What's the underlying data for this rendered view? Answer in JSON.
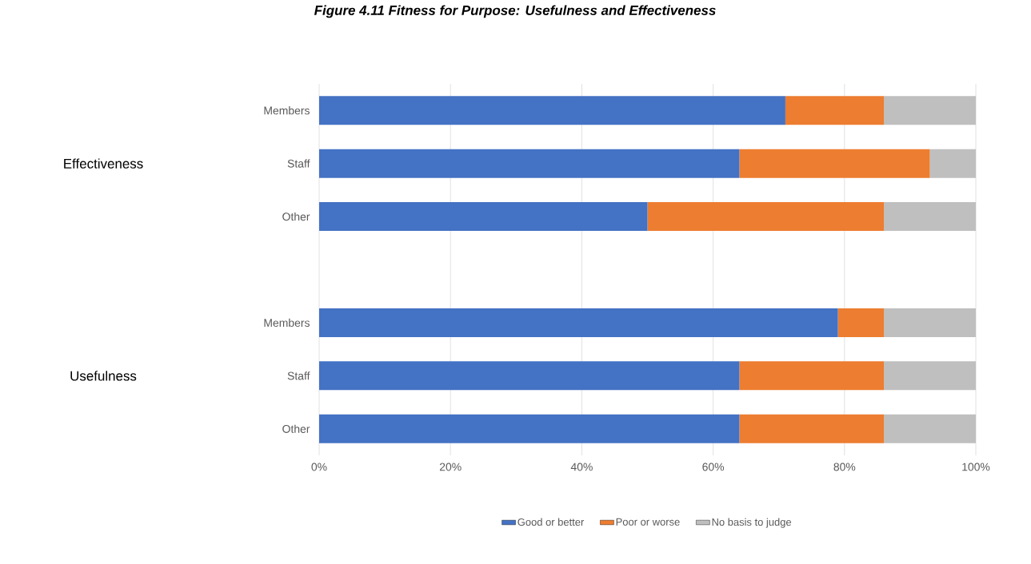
{
  "chart_data": {
    "type": "bar",
    "orientation": "horizontal",
    "stacked": true,
    "title": "Figure 4.11 Fitness for Purpose: Usefulness and Effectiveness",
    "categories": [
      "Members",
      "Staff",
      "Other",
      null,
      "Members",
      "Staff",
      "Other"
    ],
    "series": [
      {
        "name": "Good or better",
        "color": "#4472c4",
        "values": [
          71,
          64,
          50,
          null,
          79,
          64,
          64
        ]
      },
      {
        "name": "Poor or worse",
        "color": "#ed7d31",
        "values": [
          15,
          29,
          36,
          null,
          7,
          22,
          22
        ]
      },
      {
        "name": "No basis to judge",
        "color": "#bfbfbf",
        "values": [
          14,
          7,
          14,
          null,
          14,
          14,
          14
        ]
      }
    ],
    "xlim": [
      0,
      100
    ],
    "xticks": [
      {
        "value": 0,
        "label": "0%"
      },
      {
        "value": 20,
        "label": "20%"
      },
      {
        "value": 40,
        "label": "40%"
      },
      {
        "value": 60,
        "label": "60%"
      },
      {
        "value": 80,
        "label": "80%"
      },
      {
        "value": 100,
        "label": "100%"
      }
    ],
    "annotations": [
      "Effectiveness",
      "Usefulness"
    ],
    "grid": "x",
    "legend": "bottom"
  }
}
